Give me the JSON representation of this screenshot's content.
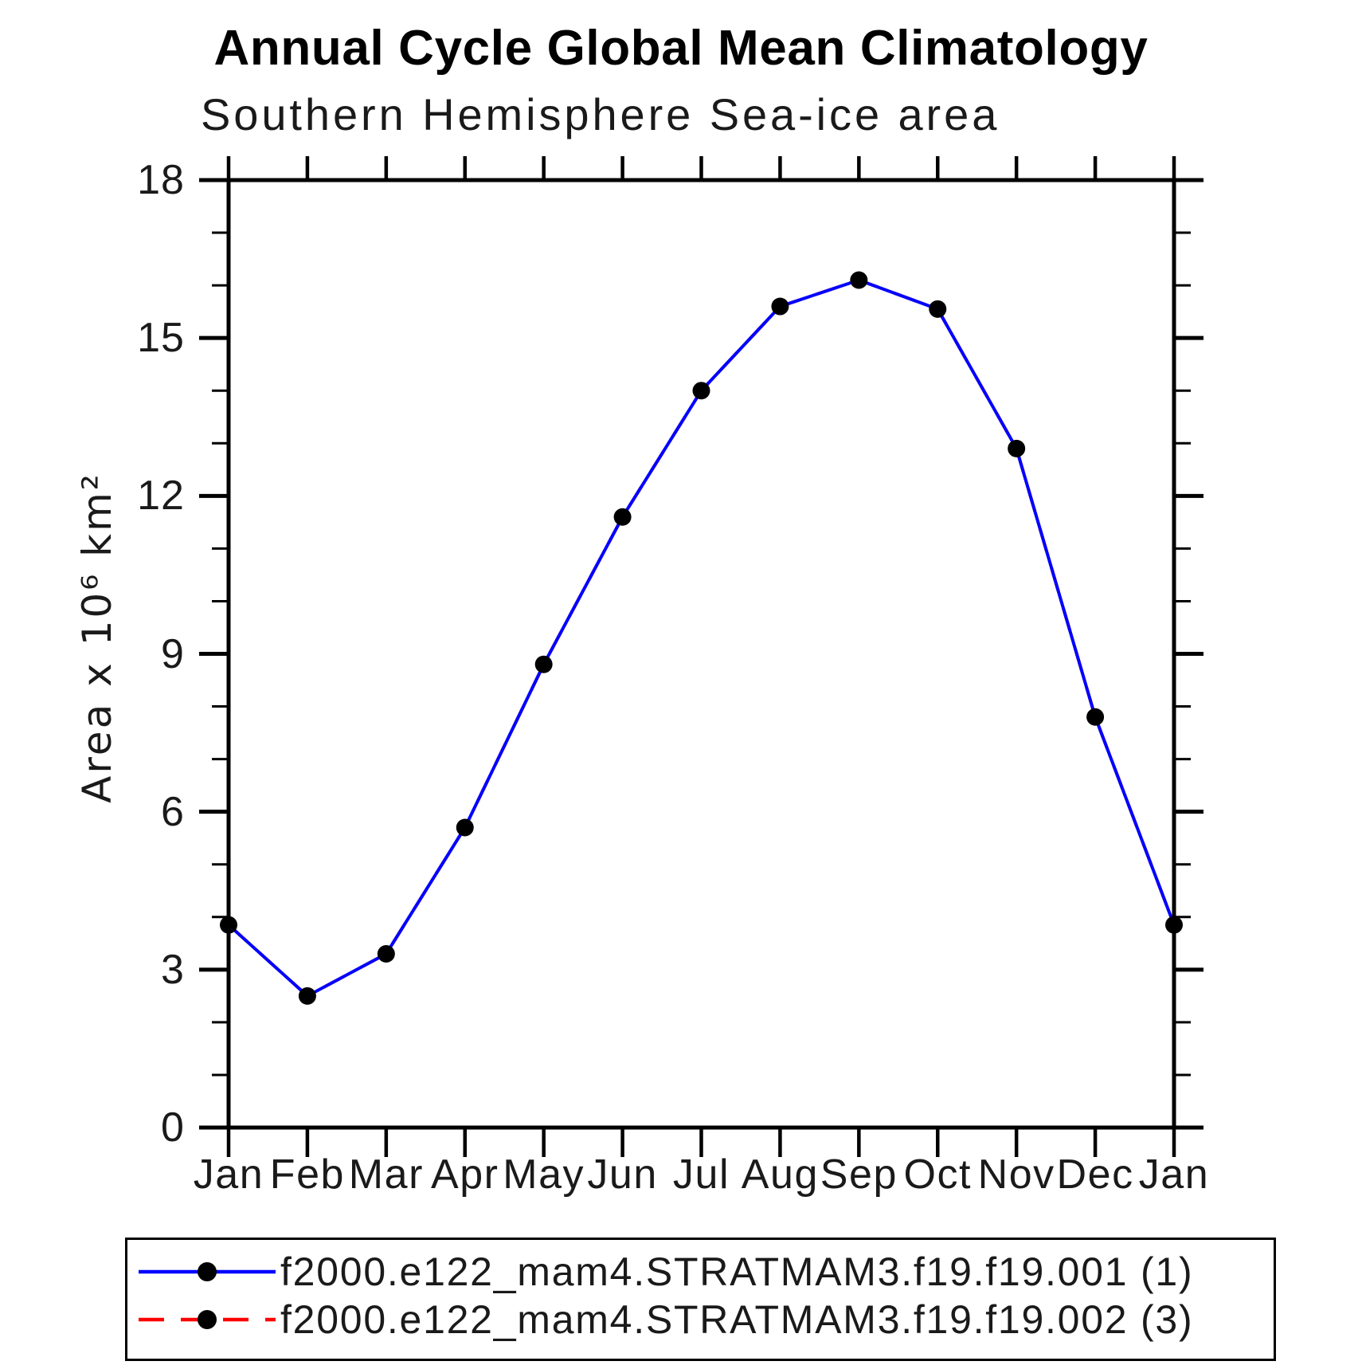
{
  "page": {
    "background": "#ffffff",
    "text_color": "#000000"
  },
  "chart_data": {
    "type": "line",
    "title": "Annual Cycle Global Mean Climatology",
    "subtitle": "Southern Hemisphere Sea-ice area",
    "ylabel": "Area x 10⁶ km²",
    "xlabel": "",
    "categories": [
      "Jan",
      "Feb",
      "Mar",
      "Apr",
      "May",
      "Jun",
      "Jul",
      "Aug",
      "Sep",
      "Oct",
      "Nov",
      "Dec",
      "Jan"
    ],
    "ylim": [
      0,
      18
    ],
    "ytick_interval": 3,
    "ytick_labels": [
      "0",
      "3",
      "6",
      "9",
      "12",
      "15",
      "18"
    ],
    "yminor_interval": 1,
    "grid": "off",
    "legend_position": "bottom",
    "axis_color": "#000000",
    "marker_color": "#000000",
    "series": [
      {
        "name": "f2000.e122_mam4.STRATMAM3.f19.f19.001 (1)",
        "color": "#0000ff",
        "line_style": "solid",
        "marker": "filled-circle",
        "values": [
          3.85,
          2.5,
          3.3,
          5.7,
          8.8,
          11.6,
          14.0,
          15.6,
          16.1,
          15.55,
          12.9,
          7.8,
          3.85
        ]
      },
      {
        "name": "f2000.e122_mam4.STRATMAM3.f19.f19.002 (3)",
        "color": "#ff0000",
        "line_style": "dashed",
        "marker": "filled-circle",
        "values": [
          3.85,
          2.5,
          3.3,
          5.7,
          8.8,
          11.6,
          14.0,
          15.6,
          16.1,
          15.55,
          12.9,
          7.8,
          3.85
        ]
      }
    ]
  }
}
